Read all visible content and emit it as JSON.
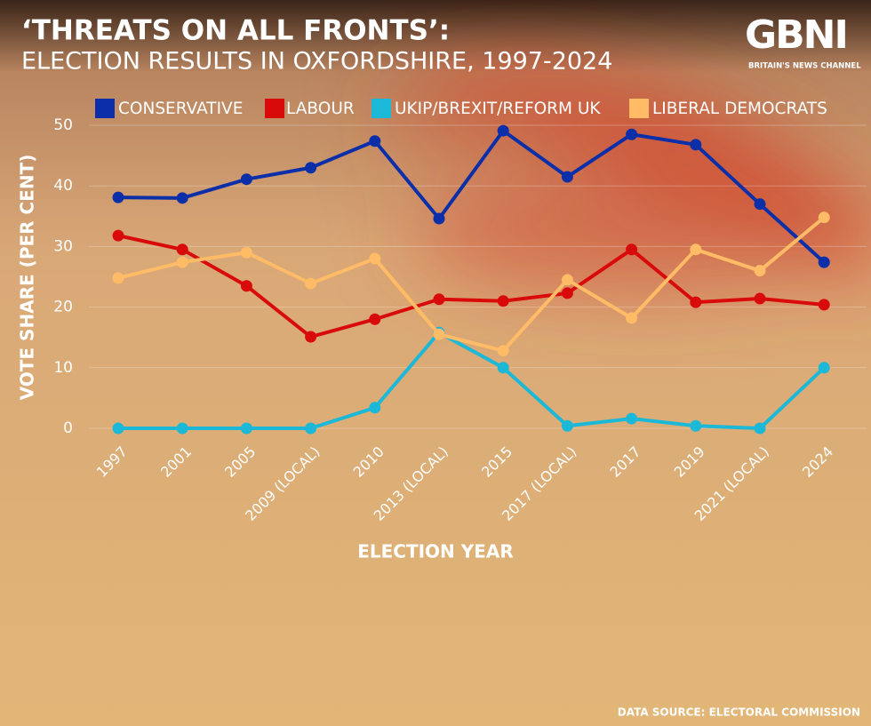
{
  "chart_data": {
    "type": "line",
    "title": "‘THREATS ON ALL FRONTS’:",
    "subtitle": "ELECTION RESULTS IN OXFORDSHIRE, 1997-2024",
    "x_label": "ELECTION YEAR",
    "y_label": "VOTE SHARE (PER CENT)",
    "source": "DATA SOURCE: ELECTORAL COMMISSION",
    "categories": [
      "1997",
      "2001",
      "2005",
      "2009 (LOCAL)",
      "2010",
      "2013 (LOCAL)",
      "2015",
      "2017 (LOCAL)",
      "2017",
      "2019",
      "2021 (LOCAL)",
      "2024"
    ],
    "series": [
      {
        "name": "CONSERVATIVE",
        "color": "#0b2fa8",
        "values": [
          38.1,
          38.0,
          41.1,
          43.0,
          47.4,
          34.6,
          49.1,
          41.5,
          48.5,
          46.8,
          37.0,
          27.4
        ]
      },
      {
        "name": "LABOUR",
        "color": "#d90a0a",
        "values": [
          31.8,
          29.5,
          23.5,
          15.1,
          18.0,
          21.3,
          21.0,
          22.3,
          29.5,
          20.8,
          21.4,
          20.4
        ]
      },
      {
        "name": "UKIP/BREXIT/REFORM UK",
        "color": "#1cb8d8",
        "values": [
          0,
          0,
          0,
          0,
          3.4,
          15.8,
          10.0,
          0.4,
          1.6,
          0.4,
          0,
          10.0
        ]
      },
      {
        "name": "LIBERAL DEMOCRATS",
        "color": "#ffbb66",
        "values": [
          24.8,
          27.4,
          29.0,
          23.9,
          28.0,
          15.5,
          12.8,
          24.5,
          18.2,
          29.5,
          26.0,
          34.8
        ]
      }
    ],
    "ylim": [
      0,
      50
    ],
    "yticks": [
      0,
      10,
      20,
      30,
      40,
      50
    ],
    "grid": true
  },
  "logo": "GBNI",
  "logo_tagline": "BRITAIN'S NEWS CHANNEL"
}
